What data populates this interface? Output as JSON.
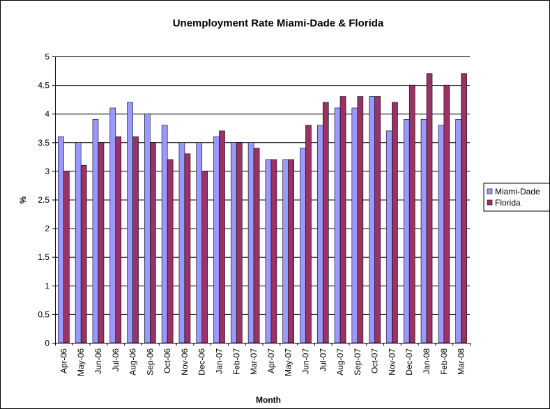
{
  "chart_data": {
    "type": "bar",
    "title": "Unemployment Rate Miami-Dade & Florida",
    "xlabel": "Month",
    "ylabel": "%",
    "ylim": [
      0,
      5
    ],
    "yticks": [
      "0",
      "0.5",
      "1",
      "1.5",
      "2",
      "2.5",
      "3",
      "3.5",
      "4",
      "4.5",
      "5"
    ],
    "ytick_values": [
      0,
      0.5,
      1,
      1.5,
      2,
      2.5,
      3,
      3.5,
      4,
      4.5,
      5
    ],
    "grid": "horizontal",
    "legend_position": "right",
    "categories": [
      "Apr-06",
      "May-06",
      "Jun-06",
      "Jul-06",
      "Aug-06",
      "Sep-06",
      "Oct-06",
      "Nov-06",
      "Dec-06",
      "Jan-07",
      "Feb-07",
      "Mar-07",
      "Apr-07",
      "May-07",
      "Jun-07",
      "Jul-07",
      "Aug-07",
      "Sep-07",
      "Oct-07",
      "Nov-07",
      "Dec-07",
      "Jan-08",
      "Feb-08",
      "Mar-08"
    ],
    "series": [
      {
        "name": "Miami-Dade",
        "color": "#9999ff",
        "values": [
          3.6,
          3.5,
          3.9,
          4.1,
          4.2,
          4.0,
          3.8,
          3.5,
          3.5,
          3.6,
          3.5,
          3.5,
          3.2,
          3.2,
          3.4,
          3.8,
          4.1,
          4.1,
          4.3,
          3.7,
          3.9,
          3.9,
          3.8,
          3.9
        ]
      },
      {
        "name": "Florida",
        "color": "#993366",
        "values": [
          3.0,
          3.1,
          3.5,
          3.6,
          3.6,
          3.5,
          3.2,
          3.3,
          3.0,
          3.7,
          3.5,
          3.4,
          3.2,
          3.2,
          3.8,
          4.2,
          4.3,
          4.3,
          4.3,
          4.2,
          4.5,
          4.7,
          4.5,
          4.7
        ]
      }
    ]
  }
}
